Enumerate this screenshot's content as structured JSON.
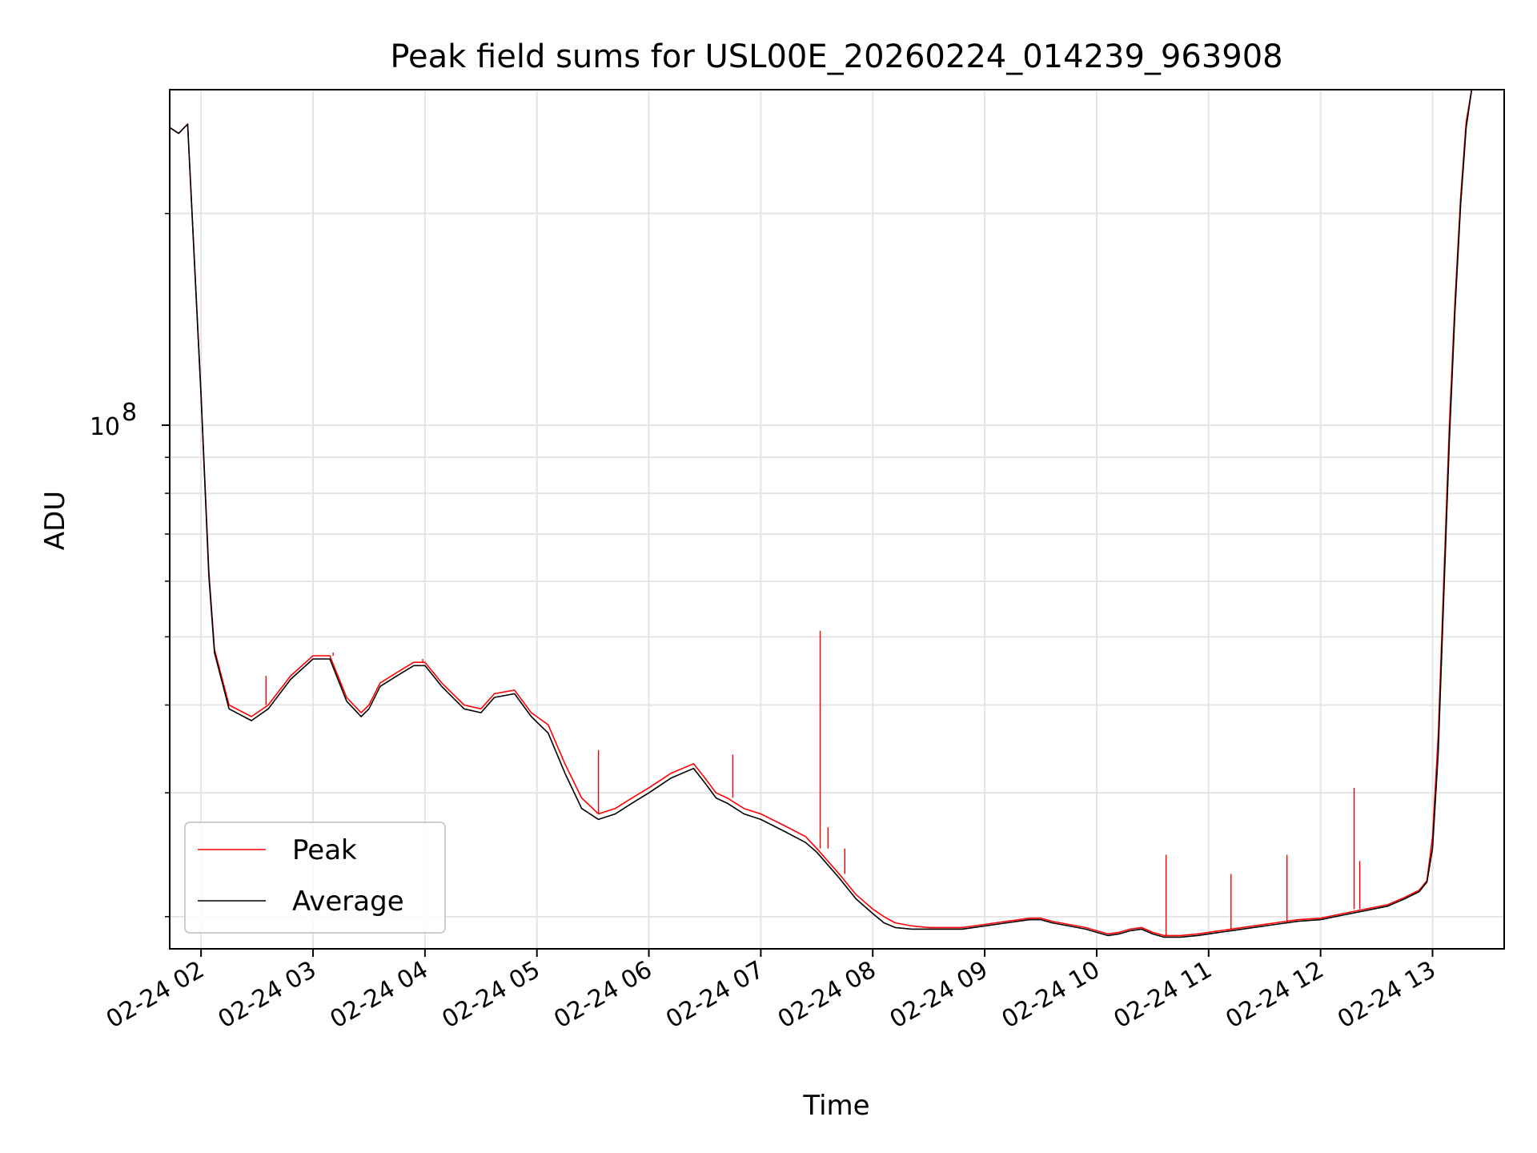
{
  "chart_data": {
    "type": "line",
    "title": "Peak field sums for USL00E_20260224_014239_963908",
    "xlabel": "Time",
    "ylabel": "ADU",
    "yscale": "log",
    "ylim": [
      18000000,
      300000000
    ],
    "xlim": [
      1.72,
      13.64
    ],
    "grid": true,
    "legend_position": "lower-left",
    "x_ticks": [
      {
        "value": 2,
        "label": "02-24 02"
      },
      {
        "value": 3,
        "label": "02-24 03"
      },
      {
        "value": 4,
        "label": "02-24 04"
      },
      {
        "value": 5,
        "label": "02-24 05"
      },
      {
        "value": 6,
        "label": "02-24 06"
      },
      {
        "value": 7,
        "label": "02-24 07"
      },
      {
        "value": 8,
        "label": "02-24 08"
      },
      {
        "value": 9,
        "label": "02-24 09"
      },
      {
        "value": 10,
        "label": "02-24 10"
      },
      {
        "value": 11,
        "label": "02-24 11"
      },
      {
        "value": 12,
        "label": "02-24 12"
      },
      {
        "value": 13,
        "label": "02-24 13"
      }
    ],
    "y_major_ticks": [
      {
        "value": 100000000,
        "base": "10",
        "exp": "8"
      }
    ],
    "y_minor_ticks": [
      20000000,
      30000000,
      40000000,
      50000000,
      60000000,
      70000000,
      80000000,
      90000000,
      200000000
    ],
    "series": [
      {
        "name": "Peak",
        "color": "#ff0000",
        "x": [
          1.72,
          1.8,
          1.88,
          2.0,
          2.07,
          2.12,
          2.25,
          2.45,
          2.6,
          2.8,
          3.0,
          3.15,
          3.3,
          3.43,
          3.5,
          3.6,
          3.75,
          3.9,
          4.0,
          4.15,
          4.35,
          4.5,
          4.62,
          4.8,
          4.95,
          5.1,
          5.25,
          5.4,
          5.55,
          5.7,
          5.85,
          6.0,
          6.2,
          6.4,
          6.5,
          6.6,
          6.7,
          6.85,
          7.0,
          7.2,
          7.4,
          7.5,
          7.7,
          7.85,
          8.0,
          8.1,
          8.2,
          8.35,
          8.5,
          8.65,
          8.8,
          9.0,
          9.2,
          9.4,
          9.5,
          9.6,
          9.75,
          9.9,
          10.0,
          10.1,
          10.2,
          10.3,
          10.4,
          10.5,
          10.6,
          10.75,
          10.9,
          11.0,
          11.2,
          11.4,
          11.6,
          11.8,
          12.0,
          12.2,
          12.4,
          12.6,
          12.75,
          12.88,
          12.95,
          13.0,
          13.05,
          13.1,
          13.15,
          13.2,
          13.25,
          13.3,
          13.35,
          13.4,
          13.45,
          13.5,
          13.55,
          13.6,
          13.64
        ],
        "values": [
          265000000,
          260000000,
          268000000,
          110000000,
          62000000,
          48000000,
          40000000,
          38500000,
          40000000,
          44000000,
          47000000,
          47000000,
          41000000,
          39000000,
          40000000,
          43000000,
          44500000,
          46000000,
          46000000,
          43000000,
          40000000,
          39500000,
          41500000,
          42000000,
          39000000,
          37500000,
          33000000,
          29500000,
          28000000,
          28500000,
          29500000,
          30500000,
          32000000,
          33000000,
          31500000,
          30000000,
          29500000,
          28500000,
          28000000,
          27000000,
          26000000,
          25000000,
          23000000,
          21500000,
          20500000,
          20000000,
          19600000,
          19400000,
          19300000,
          19300000,
          19300000,
          19500000,
          19700000,
          19900000,
          19900000,
          19700000,
          19500000,
          19300000,
          19100000,
          18900000,
          19000000,
          19200000,
          19300000,
          19000000,
          18800000,
          18800000,
          18900000,
          19000000,
          19200000,
          19400000,
          19600000,
          19800000,
          19900000,
          20200000,
          20500000,
          20800000,
          21300000,
          21800000,
          22500000,
          26000000,
          36000000,
          60000000,
          100000000,
          150000000,
          210000000,
          270000000,
          300000000,
          300000000,
          300000000,
          300000000,
          300000000,
          300000000,
          300000000
        ],
        "spikes": [
          {
            "x": 2.58,
            "value": 44000000
          },
          {
            "x": 3.18,
            "value": 47500000
          },
          {
            "x": 3.98,
            "value": 46500000
          },
          {
            "x": 5.55,
            "value": 34500000
          },
          {
            "x": 6.75,
            "value": 34000000
          },
          {
            "x": 7.53,
            "value": 51000000
          },
          {
            "x": 7.6,
            "value": 26800000
          },
          {
            "x": 7.75,
            "value": 25000000
          },
          {
            "x": 10.62,
            "value": 24500000
          },
          {
            "x": 11.2,
            "value": 23000000
          },
          {
            "x": 11.7,
            "value": 24500000
          },
          {
            "x": 12.3,
            "value": 30500000
          },
          {
            "x": 12.35,
            "value": 24000000
          }
        ]
      },
      {
        "name": "Average",
        "color": "#000000",
        "x": [
          1.72,
          1.8,
          1.88,
          2.0,
          2.07,
          2.12,
          2.25,
          2.45,
          2.6,
          2.8,
          3.0,
          3.15,
          3.3,
          3.43,
          3.5,
          3.6,
          3.75,
          3.9,
          4.0,
          4.15,
          4.35,
          4.5,
          4.62,
          4.8,
          4.95,
          5.1,
          5.25,
          5.4,
          5.55,
          5.7,
          5.85,
          6.0,
          6.2,
          6.4,
          6.5,
          6.6,
          6.7,
          6.85,
          7.0,
          7.2,
          7.4,
          7.5,
          7.7,
          7.85,
          8.0,
          8.1,
          8.2,
          8.35,
          8.5,
          8.65,
          8.8,
          9.0,
          9.2,
          9.4,
          9.5,
          9.6,
          9.75,
          9.9,
          10.0,
          10.1,
          10.2,
          10.3,
          10.4,
          10.5,
          10.6,
          10.75,
          10.9,
          11.0,
          11.2,
          11.4,
          11.6,
          11.8,
          12.0,
          12.2,
          12.4,
          12.6,
          12.75,
          12.88,
          12.95,
          13.0,
          13.05,
          13.1,
          13.15,
          13.2,
          13.25,
          13.3,
          13.35,
          13.4,
          13.45,
          13.5,
          13.55,
          13.6,
          13.64
        ],
        "values": [
          265000000,
          260000000,
          268000000,
          110000000,
          61000000,
          47500000,
          39500000,
          38000000,
          39500000,
          43500000,
          46500000,
          46500000,
          40500000,
          38500000,
          39500000,
          42500000,
          44000000,
          45500000,
          45500000,
          42500000,
          39500000,
          39000000,
          41000000,
          41500000,
          38500000,
          36500000,
          32000000,
          28500000,
          27500000,
          28000000,
          29000000,
          30000000,
          31500000,
          32500000,
          31000000,
          29500000,
          29000000,
          28000000,
          27500000,
          26500000,
          25500000,
          24700000,
          22700000,
          21200000,
          20200000,
          19600000,
          19300000,
          19200000,
          19200000,
          19200000,
          19200000,
          19400000,
          19600000,
          19800000,
          19800000,
          19600000,
          19400000,
          19200000,
          19000000,
          18800000,
          18900000,
          19100000,
          19200000,
          18900000,
          18700000,
          18700000,
          18800000,
          18900000,
          19100000,
          19300000,
          19500000,
          19700000,
          19800000,
          20100000,
          20400000,
          20700000,
          21200000,
          21700000,
          22400000,
          25000000,
          34000000,
          57000000,
          95000000,
          145000000,
          205000000,
          265000000,
          300000000,
          300000000,
          300000000,
          300000000,
          300000000,
          300000000,
          300000000
        ]
      }
    ]
  }
}
